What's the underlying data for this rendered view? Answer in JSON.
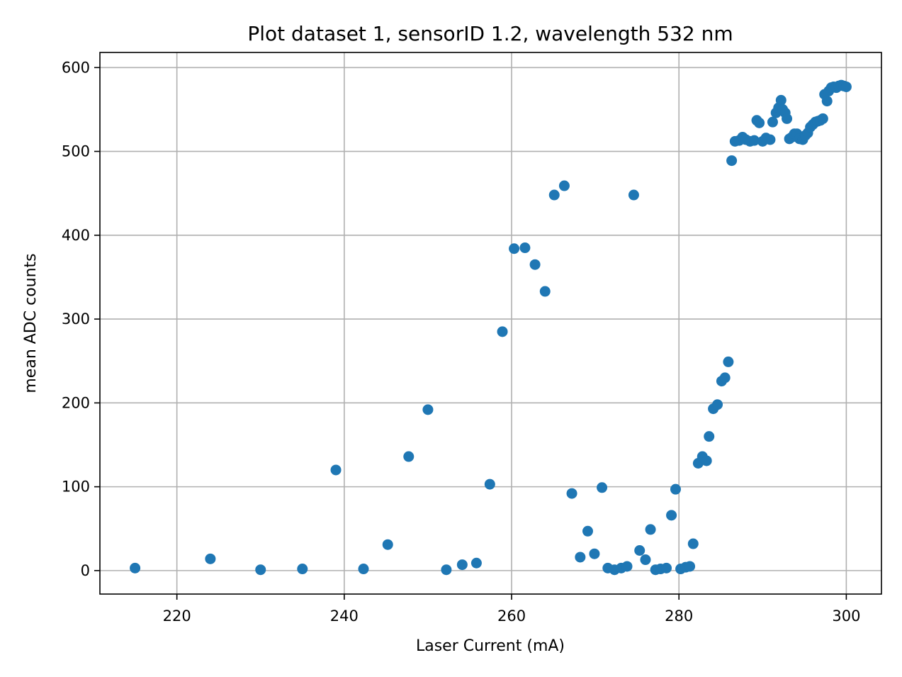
{
  "chart_data": {
    "type": "scatter",
    "title": "Plot dataset 1, sensorID 1.2, wavelength 532 nm",
    "xlabel": "Laser Current (mA)",
    "ylabel": "mean ADC counts",
    "xlim": [
      210.8,
      304.2
    ],
    "ylim": [
      -28,
      618
    ],
    "xticks": [
      220,
      240,
      260,
      280,
      300
    ],
    "yticks": [
      0,
      100,
      200,
      300,
      400,
      500,
      600
    ],
    "grid": true,
    "marker_color": "#1f77b4",
    "points": [
      [
        215,
        3
      ],
      [
        224,
        14
      ],
      [
        230,
        1
      ],
      [
        235,
        2
      ],
      [
        239,
        120
      ],
      [
        242.3,
        2
      ],
      [
        245.2,
        31
      ],
      [
        247.7,
        136
      ],
      [
        250,
        192
      ],
      [
        252.2,
        1
      ],
      [
        254.1,
        7
      ],
      [
        255.8,
        9
      ],
      [
        257.4,
        103
      ],
      [
        258.9,
        285
      ],
      [
        260.3,
        384
      ],
      [
        261.6,
        385
      ],
      [
        262.8,
        365
      ],
      [
        264,
        333
      ],
      [
        265.1,
        448
      ],
      [
        266.3,
        459
      ],
      [
        267.2,
        92
      ],
      [
        268.2,
        16
      ],
      [
        269.1,
        47
      ],
      [
        269.9,
        20
      ],
      [
        270.8,
        99
      ],
      [
        271.5,
        3
      ],
      [
        272.3,
        1
      ],
      [
        273.1,
        3
      ],
      [
        273.8,
        5
      ],
      [
        274.6,
        448
      ],
      [
        275.3,
        24
      ],
      [
        276,
        13
      ],
      [
        276.6,
        49
      ],
      [
        277.2,
        1
      ],
      [
        277.8,
        2
      ],
      [
        278.5,
        3
      ],
      [
        279.1,
        66
      ],
      [
        279.6,
        97
      ],
      [
        280.2,
        2
      ],
      [
        280.8,
        4
      ],
      [
        281.3,
        5
      ],
      [
        281.7,
        32
      ],
      [
        282.3,
        128
      ],
      [
        282.8,
        136
      ],
      [
        283.3,
        131
      ],
      [
        283.6,
        160
      ],
      [
        284.1,
        193
      ],
      [
        284.6,
        198
      ],
      [
        285.1,
        226
      ],
      [
        285.5,
        230
      ],
      [
        285.9,
        249
      ],
      [
        286.3,
        489
      ],
      [
        286.7,
        512
      ],
      [
        287.2,
        513
      ],
      [
        287.6,
        517
      ],
      [
        288,
        514
      ],
      [
        288.5,
        512
      ],
      [
        289,
        513
      ],
      [
        289.3,
        537
      ],
      [
        289.6,
        534
      ],
      [
        290,
        512
      ],
      [
        290.4,
        516
      ],
      [
        290.9,
        514
      ],
      [
        291.2,
        535
      ],
      [
        291.6,
        546
      ],
      [
        291.9,
        552
      ],
      [
        292.2,
        561
      ],
      [
        292.4,
        550
      ],
      [
        292.7,
        546
      ],
      [
        292.9,
        539
      ],
      [
        293.2,
        515
      ],
      [
        293.5,
        517
      ],
      [
        293.8,
        521
      ],
      [
        294.1,
        521
      ],
      [
        294.4,
        515
      ],
      [
        294.8,
        514
      ],
      [
        295.1,
        519
      ],
      [
        295.4,
        522
      ],
      [
        295.7,
        529
      ],
      [
        296,
        532
      ],
      [
        296.3,
        535
      ],
      [
        296.6,
        536
      ],
      [
        296.9,
        537
      ],
      [
        297.2,
        539
      ],
      [
        297.4,
        568
      ],
      [
        297.7,
        560
      ],
      [
        297.9,
        572
      ],
      [
        298.2,
        576
      ],
      [
        298.5,
        577
      ],
      [
        298.8,
        576
      ],
      [
        299.1,
        578
      ],
      [
        299.4,
        579
      ],
      [
        299.7,
        578
      ],
      [
        300,
        577
      ]
    ]
  }
}
